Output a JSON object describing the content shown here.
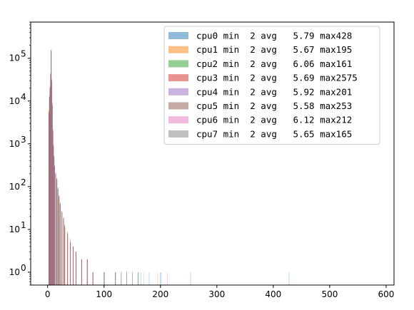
{
  "chart_data": {
    "type": "bar",
    "title": "",
    "xlabel": "",
    "ylabel": "",
    "xlim": [
      -30,
      614
    ],
    "ylim": [
      0.5,
      700000
    ],
    "y_scale": "log",
    "grid": false,
    "legend_position": "top-right",
    "x_ticks": [
      "0",
      "100",
      "200",
      "300",
      "400",
      "500",
      "600"
    ],
    "y_ticks": [
      {
        "value": 1,
        "base": "10",
        "exp": "0"
      },
      {
        "value": 10,
        "base": "10",
        "exp": "1"
      },
      {
        "value": 100,
        "base": "10",
        "exp": "2"
      },
      {
        "value": 1000,
        "base": "10",
        "exp": "3"
      },
      {
        "value": 10000,
        "base": "10",
        "exp": "4"
      },
      {
        "value": 100000,
        "base": "10",
        "exp": "5"
      }
    ],
    "series": [
      {
        "name": "cpu0",
        "legend": "cpu0 min  2 avg   5.79 max428",
        "color": "#1f77b4",
        "min": 2,
        "avg": 5.79,
        "max": 428,
        "x": [
          2,
          3,
          4,
          5,
          6,
          7,
          8,
          9,
          10,
          11,
          12,
          14,
          16,
          18,
          20,
          22,
          25,
          28,
          30,
          35,
          40,
          45,
          50,
          60,
          70,
          80,
          100,
          120,
          140,
          160,
          180,
          200,
          428
        ],
        "y": [
          5000,
          12000,
          20000,
          40000,
          150000,
          30000,
          8000,
          2000,
          900,
          500,
          300,
          200,
          150,
          90,
          60,
          40,
          25,
          18,
          12,
          8,
          5,
          4,
          3,
          2,
          2,
          1,
          1,
          1,
          1,
          1,
          1,
          1,
          1
        ]
      },
      {
        "name": "cpu1",
        "legend": "cpu1 min  2 avg   5.67 max195",
        "color": "#ff7f0e",
        "min": 2,
        "avg": 5.67,
        "max": 195,
        "x": [
          2,
          3,
          4,
          5,
          6,
          7,
          8,
          9,
          10,
          11,
          12,
          14,
          16,
          18,
          20,
          22,
          25,
          28,
          30,
          35,
          40,
          45,
          50,
          60,
          70,
          80,
          100,
          120,
          150,
          195
        ],
        "y": [
          6000,
          13000,
          22000,
          45000,
          160000,
          28000,
          7500,
          1800,
          850,
          480,
          290,
          190,
          140,
          85,
          55,
          38,
          24,
          17,
          11,
          7,
          5,
          4,
          3,
          2,
          2,
          1,
          1,
          1,
          1,
          1
        ]
      },
      {
        "name": "cpu2",
        "legend": "cpu2 min  2 avg   6.06 max161",
        "color": "#2ca02c",
        "min": 2,
        "avg": 6.06,
        "max": 161,
        "x": [
          2,
          3,
          4,
          5,
          6,
          7,
          8,
          9,
          10,
          11,
          12,
          14,
          16,
          18,
          20,
          22,
          25,
          28,
          30,
          35,
          40,
          45,
          50,
          60,
          70,
          80,
          100,
          130,
          161
        ],
        "y": [
          4500,
          11000,
          19000,
          38000,
          140000,
          32000,
          9000,
          2200,
          950,
          520,
          310,
          210,
          160,
          95,
          62,
          42,
          27,
          19,
          13,
          9,
          6,
          4,
          3,
          2,
          2,
          1,
          1,
          1,
          1
        ]
      },
      {
        "name": "cpu3",
        "legend": "cpu3 min  2 avg   5.69 max2575",
        "color": "#d62728",
        "min": 2,
        "avg": 5.69,
        "max": 2575,
        "x": [
          2,
          3,
          4,
          5,
          6,
          7,
          8,
          9,
          10,
          11,
          12,
          14,
          16,
          18,
          20,
          22,
          25,
          28,
          30,
          35,
          40,
          45,
          50,
          60,
          70,
          80,
          100,
          120,
          140
        ],
        "y": [
          5500,
          12500,
          21000,
          42000,
          155000,
          29000,
          7800,
          1900,
          880,
          490,
          295,
          195,
          145,
          88,
          58,
          39,
          25,
          18,
          12,
          8,
          5,
          4,
          3,
          2,
          2,
          1,
          1,
          1,
          1
        ]
      },
      {
        "name": "cpu4",
        "legend": "cpu4 min  2 avg   5.92 max201",
        "color": "#9467bd",
        "min": 2,
        "avg": 5.92,
        "max": 201,
        "x": [
          2,
          3,
          4,
          5,
          6,
          7,
          8,
          9,
          10,
          11,
          12,
          14,
          16,
          18,
          20,
          22,
          25,
          28,
          30,
          35,
          40,
          45,
          50,
          60,
          70,
          80,
          100,
          120,
          160,
          201
        ],
        "y": [
          4800,
          11500,
          19500,
          39000,
          145000,
          31000,
          8500,
          2100,
          920,
          510,
          305,
          205,
          155,
          92,
          61,
          41,
          26,
          18,
          12,
          8,
          5,
          4,
          3,
          2,
          2,
          1,
          1,
          1,
          1,
          1
        ]
      },
      {
        "name": "cpu5",
        "legend": "cpu5 min  2 avg   5.58 max253",
        "color": "#8c564b",
        "min": 2,
        "avg": 5.58,
        "max": 253,
        "x": [
          2,
          3,
          4,
          5,
          6,
          7,
          8,
          9,
          10,
          11,
          12,
          14,
          16,
          18,
          20,
          22,
          25,
          28,
          30,
          35,
          40,
          45,
          50,
          60,
          70,
          80,
          100,
          120,
          150,
          253
        ],
        "y": [
          5800,
          12800,
          21500,
          44000,
          158000,
          28500,
          7600,
          1850,
          860,
          485,
          292,
          192,
          142,
          86,
          56,
          38,
          24,
          17,
          11,
          7,
          5,
          4,
          3,
          2,
          2,
          1,
          1,
          1,
          1,
          1
        ]
      },
      {
        "name": "cpu6",
        "legend": "cpu6 min  2 avg   6.12 max212",
        "color": "#e377c2",
        "min": 2,
        "avg": 6.12,
        "max": 212,
        "x": [
          2,
          3,
          4,
          5,
          6,
          7,
          8,
          9,
          10,
          11,
          12,
          14,
          16,
          18,
          20,
          22,
          25,
          28,
          30,
          35,
          40,
          45,
          50,
          60,
          70,
          80,
          100,
          130,
          170,
          212
        ],
        "y": [
          4400,
          10800,
          18800,
          37000,
          138000,
          32500,
          9200,
          2250,
          960,
          525,
          315,
          212,
          162,
          96,
          63,
          43,
          27,
          19,
          13,
          9,
          6,
          4,
          3,
          2,
          2,
          1,
          1,
          1,
          1,
          1
        ]
      },
      {
        "name": "cpu7",
        "legend": "cpu7 min  2 avg   5.65 max165",
        "color": "#7f7f7f",
        "min": 2,
        "avg": 5.65,
        "max": 165,
        "x": [
          2,
          3,
          4,
          5,
          6,
          7,
          8,
          9,
          10,
          11,
          12,
          14,
          16,
          18,
          20,
          22,
          25,
          28,
          30,
          35,
          40,
          45,
          50,
          60,
          70,
          80,
          100,
          130,
          165
        ],
        "y": [
          5600,
          12600,
          21200,
          43000,
          152000,
          29500,
          7900,
          1950,
          870,
          495,
          298,
          198,
          148,
          89,
          59,
          39,
          25,
          18,
          12,
          8,
          5,
          4,
          3,
          2,
          2,
          1,
          1,
          1,
          1
        ]
      }
    ]
  }
}
